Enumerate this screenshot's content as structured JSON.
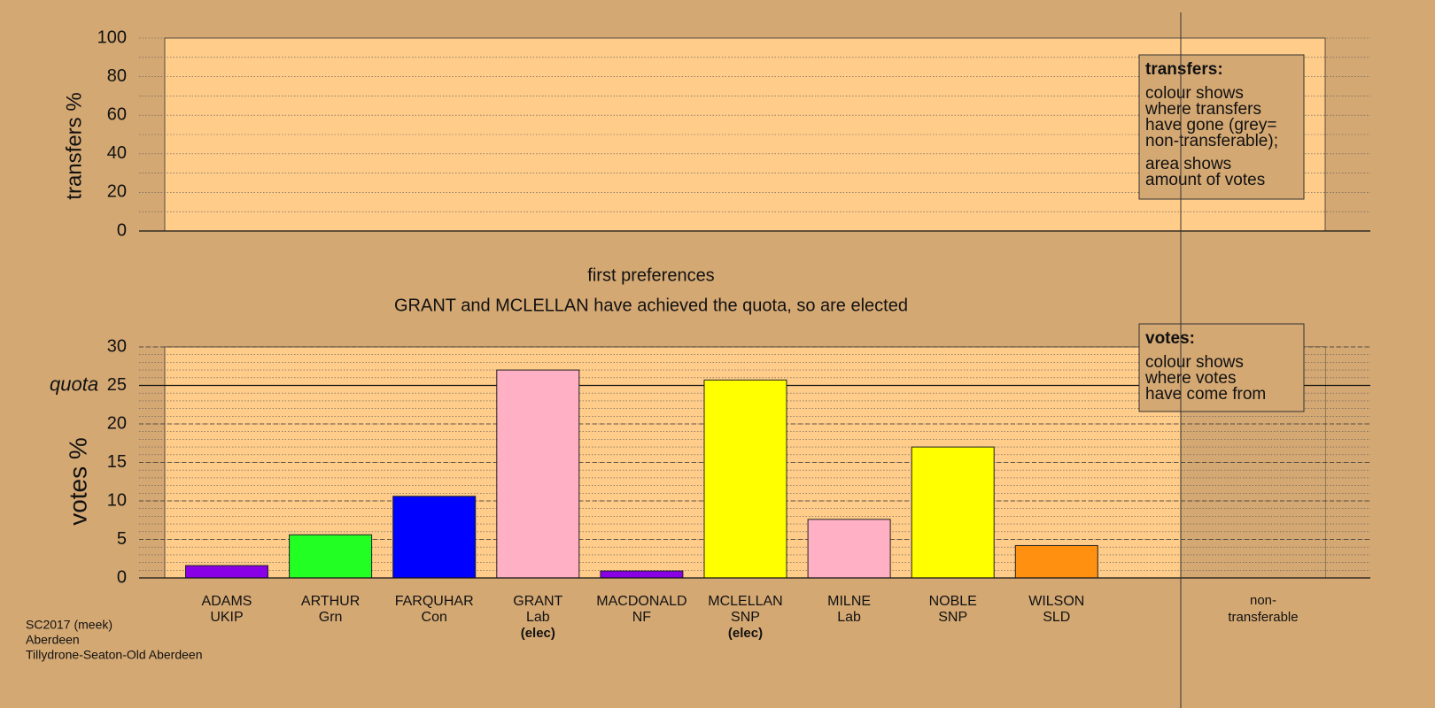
{
  "chart_data": [
    {
      "type": "bar",
      "ylabel": "transfers %",
      "ylim": [
        0,
        100
      ],
      "yticks": [
        0,
        20,
        40,
        60,
        80,
        100
      ],
      "minor_yticks": [
        0,
        10,
        20,
        30,
        40,
        50,
        60,
        70,
        80,
        90,
        100
      ],
      "note": {
        "title": "transfers:",
        "lines": [
          "colour shows",
          "where transfers",
          "have gone (grey=",
          "non-transferable);",
          "area shows",
          "amount of votes"
        ]
      }
    },
    {
      "type": "bar",
      "title": "first preferences",
      "subtitle": "GRANT and MCLELLAN have achieved the quota, so are elected",
      "ylabel": "votes %",
      "ylim": [
        0,
        30
      ],
      "yticks": [
        0,
        5,
        10,
        15,
        20,
        25,
        30
      ],
      "minor_yticks": [
        0,
        1,
        2,
        3,
        4,
        5,
        6,
        7,
        8,
        9,
        10,
        11,
        12,
        13,
        14,
        15,
        16,
        17,
        18,
        19,
        20,
        21,
        22,
        23,
        24,
        25,
        26,
        27,
        28,
        29,
        30
      ],
      "quota": {
        "value": 25,
        "label": "quota"
      },
      "categories": [
        "ADAMS",
        "ARTHUR",
        "FARQUHAR",
        "GRANT",
        "MACDONALD",
        "MCLELLAN",
        "MILNE",
        "NOBLE",
        "WILSON"
      ],
      "parties": [
        "UKIP",
        "Grn",
        "Con",
        "Lab",
        "NF",
        "SNP",
        "Lab",
        "SNP",
        "SLD"
      ],
      "status": [
        null,
        null,
        null,
        "(elec)",
        null,
        "(elec)",
        null,
        null,
        null
      ],
      "colors": [
        "#8a00e6",
        "#22ff22",
        "#0000ff",
        "#ffb0c4",
        "#8a00e6",
        "#ffff00",
        "#ffb0c4",
        "#ffff00",
        "#ff9010"
      ],
      "values": [
        1.6,
        5.6,
        10.6,
        27.0,
        0.9,
        25.7,
        7.6,
        17.0,
        4.2
      ],
      "extra_category": [
        "non-",
        "transferable"
      ],
      "note": {
        "title": "votes:",
        "lines": [
          "colour shows",
          "where votes",
          "have come from"
        ]
      }
    }
  ],
  "footer": [
    "SC2017 (meek)",
    "Aberdeen",
    "Tillydrone-Seaton-Old Aberdeen"
  ]
}
